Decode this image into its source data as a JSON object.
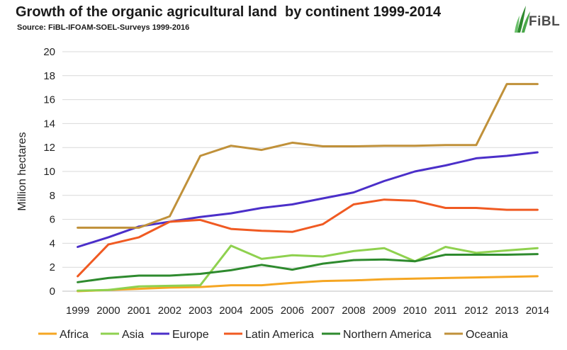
{
  "header": {
    "title": "Growth of the organic agricultural land  by continent 1999-2014",
    "subtitle": "Source: FiBL-IFOAM-SOEL-Surveys 1999-2016",
    "logo_text": "FiBL"
  },
  "colors": {
    "Africa": "#f5a623",
    "Asia": "#8fd14f",
    "Europe": "#4b2fc9",
    "Latin America": "#f05a22",
    "Northern America": "#2e8a2e",
    "Oceania": "#c0913a",
    "grid": "#d9d9d9",
    "axis": "#bfbfbf"
  },
  "chart_data": {
    "type": "line",
    "title": "Growth of the organic agricultural land  by continent 1999-2014",
    "subtitle": "Source: FiBL-IFOAM-SOEL-Surveys 1999-2016",
    "xlabel": "",
    "ylabel": "Million hectares",
    "ylim": [
      0,
      20
    ],
    "yticks": [
      0,
      2,
      4,
      6,
      8,
      10,
      12,
      14,
      16,
      18,
      20
    ],
    "grid": true,
    "legend": "bottom",
    "categories": [
      "1999",
      "2000",
      "2001",
      "2002",
      "2003",
      "2004",
      "2005",
      "2006",
      "2007",
      "2008",
      "2009",
      "2010",
      "2011",
      "2012",
      "2013",
      "2014"
    ],
    "series": [
      {
        "name": "Africa",
        "values": [
          0.0,
          0.1,
          0.2,
          0.3,
          0.35,
          0.5,
          0.5,
          0.7,
          0.85,
          0.9,
          1.0,
          1.05,
          1.1,
          1.15,
          1.2,
          1.25
        ]
      },
      {
        "name": "Asia",
        "values": [
          0.05,
          0.1,
          0.4,
          0.45,
          0.5,
          3.8,
          2.7,
          3.0,
          2.9,
          3.35,
          3.6,
          2.5,
          3.7,
          3.2,
          3.4,
          3.6
        ]
      },
      {
        "name": "Europe",
        "values": [
          3.7,
          4.5,
          5.4,
          5.8,
          6.2,
          6.5,
          6.95,
          7.25,
          7.75,
          8.25,
          9.2,
          10.0,
          10.5,
          11.1,
          11.3,
          11.6
        ]
      },
      {
        "name": "Latin America",
        "values": [
          1.25,
          3.9,
          4.5,
          5.8,
          5.95,
          5.2,
          5.05,
          4.95,
          5.6,
          7.25,
          7.65,
          7.55,
          6.95,
          6.95,
          6.8,
          6.8
        ]
      },
      {
        "name": "Northern America",
        "values": [
          0.75,
          1.1,
          1.3,
          1.3,
          1.45,
          1.75,
          2.2,
          1.8,
          2.3,
          2.6,
          2.65,
          2.5,
          3.05,
          3.05,
          3.05,
          3.1
        ]
      },
      {
        "name": "Oceania",
        "values": [
          5.3,
          5.3,
          5.3,
          6.25,
          11.3,
          12.15,
          11.8,
          12.4,
          12.1,
          12.1,
          12.15,
          12.15,
          12.2,
          12.2,
          17.3,
          17.3
        ]
      }
    ]
  }
}
